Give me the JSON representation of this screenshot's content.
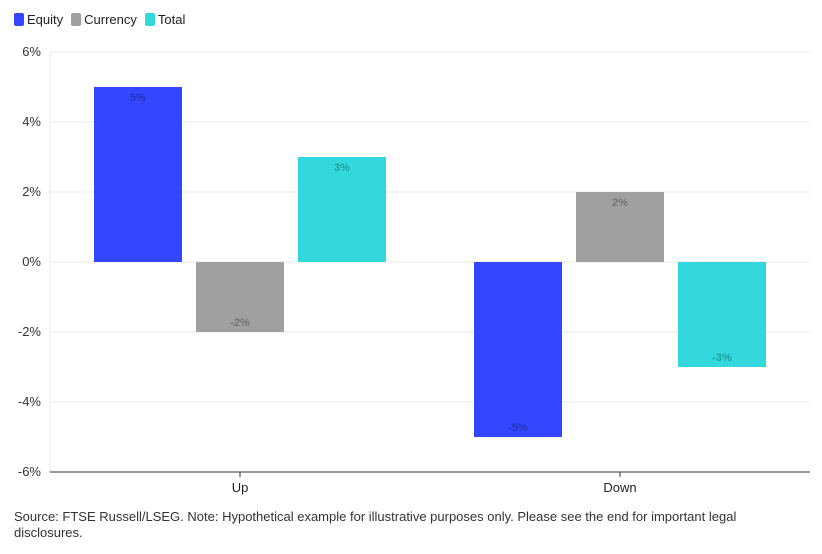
{
  "chart_data": {
    "type": "bar",
    "categories": [
      "Up",
      "Down"
    ],
    "series": [
      {
        "name": "Equity",
        "color": "#3347ff",
        "values": [
          5,
          -5
        ],
        "labels": [
          "5%",
          "-5%"
        ]
      },
      {
        "name": "Currency",
        "color": "#a0a0a0",
        "values": [
          -2,
          2
        ],
        "labels": [
          "-2%",
          "2%"
        ]
      },
      {
        "name": "Total",
        "color": "#33d8dd",
        "values": [
          3,
          -3
        ],
        "labels": [
          "3%",
          "-3%"
        ]
      }
    ],
    "ylim": [
      -6,
      6
    ],
    "yticks": [
      6,
      4,
      2,
      0,
      -2,
      -4,
      -6
    ],
    "ytick_labels": [
      "6%",
      "4%",
      "2%",
      "0%",
      "-2%",
      "-4%",
      "-6%"
    ],
    "grid": true,
    "legend_position": "top-left"
  },
  "footnote": "Source: FTSE Russell/LSEG. Note: Hypothetical example for illustrative purposes only. Please see the end for important legal disclosures."
}
